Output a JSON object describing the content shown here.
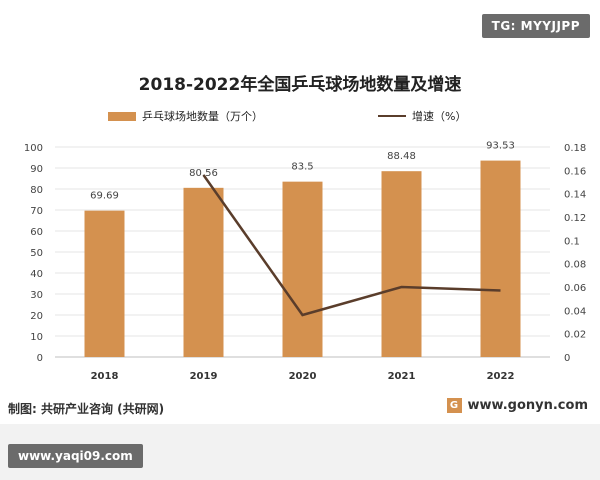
{
  "watermark_tag": "TG: MYYJJPP",
  "footer": {
    "source": "制图: 共研产业咨询 (共研网)",
    "site": "www.gonyn.com",
    "logo_glyph": "G",
    "watermark2": "www.yaqi09.com"
  },
  "colors": {
    "bar": "#d4914f",
    "line": "#5a3d2b"
  },
  "chart_data": {
    "type": "bar",
    "title": "2018-2022年全国乒乓球场地数量及增速",
    "categories": [
      "2018",
      "2019",
      "2020",
      "2021",
      "2022"
    ],
    "series": [
      {
        "name": "乒乓球场地数量（万个）",
        "type": "bar",
        "axis": "left",
        "values": [
          69.69,
          80.56,
          83.5,
          88.48,
          93.53
        ]
      },
      {
        "name": "增速（%）",
        "type": "line",
        "axis": "right",
        "values": [
          null,
          0.156,
          0.036,
          0.06,
          0.057
        ]
      }
    ],
    "data_labels": [
      "69.69",
      "80.56",
      "83.5",
      "88.48",
      "93.53"
    ],
    "ylim_left": [
      0,
      100
    ],
    "ylim_right": [
      0,
      0.18
    ],
    "yticks_left": [
      "0",
      "10",
      "20",
      "30",
      "40",
      "50",
      "60",
      "70",
      "80",
      "90",
      "100"
    ],
    "yticks_right": [
      "0",
      "0.02",
      "0.04",
      "0.06",
      "0.08",
      "0.1",
      "0.12",
      "0.14",
      "0.16",
      "0.18"
    ],
    "legend_position": "top"
  }
}
